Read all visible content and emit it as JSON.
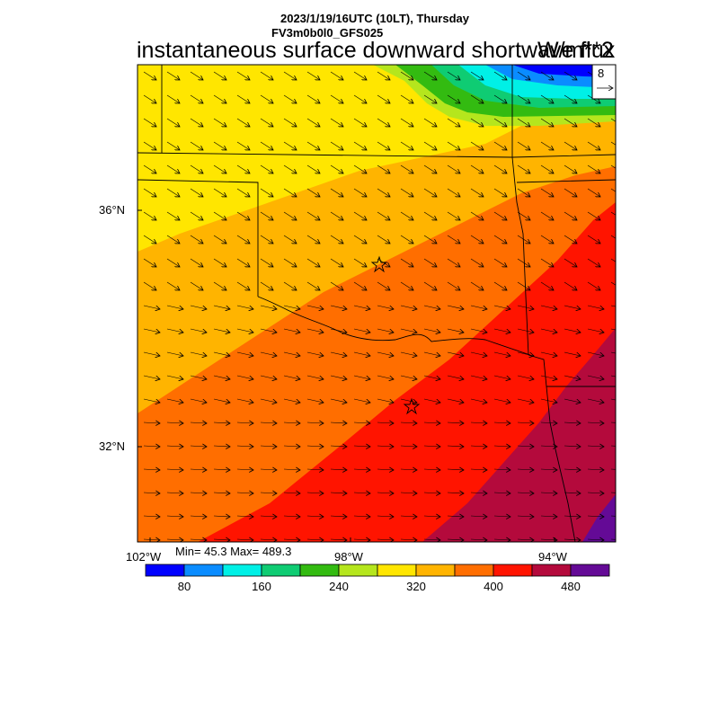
{
  "header": {
    "datetime": "2023/1/19/16UTC (10LT), Thursday",
    "model": "FV3m0b0l0_GFS025",
    "title": "instantaneous surface downward shortwave flux",
    "units": "W/m**2"
  },
  "map": {
    "lat_labels": [
      "36°N",
      "32°N"
    ],
    "lon_labels": [
      "102°W",
      "98°W",
      "94°W"
    ],
    "vector_ref_value": "8",
    "stats": "Min= 45.3 Max= 489.3",
    "cities": [
      "city-north-star",
      "city-south-star"
    ]
  },
  "colorbar": {
    "colors": [
      "#0000ff",
      "#0a8cff",
      "#00f0e6",
      "#0fcc73",
      "#33bb11",
      "#b5e61d",
      "#ffe600",
      "#ffb400",
      "#ff6e00",
      "#ff1400",
      "#b40a3c",
      "#640a96"
    ],
    "tick_labels": [
      "80",
      "160",
      "240",
      "320",
      "400",
      "480"
    ]
  }
}
